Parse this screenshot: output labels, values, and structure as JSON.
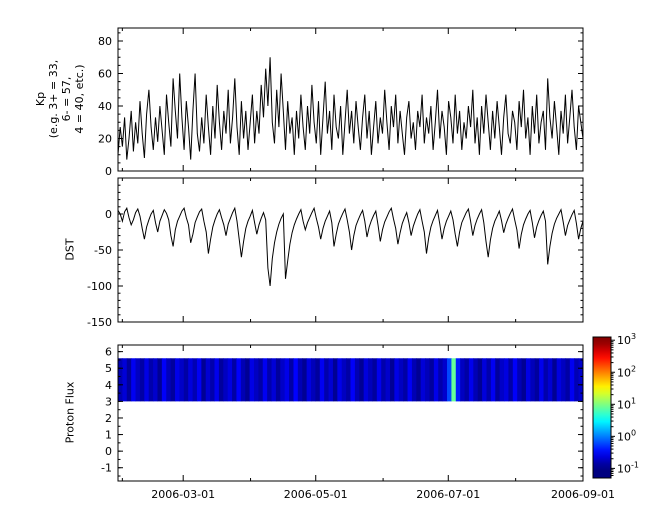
{
  "figure": {
    "background": "#ffffff",
    "axis_color": "#000000",
    "x_axis": {
      "unit": "days since 2006-02-01",
      "range": [
        -2,
        212
      ],
      "major_ticks": [
        {
          "day": 28,
          "label": "2006-03-01"
        },
        {
          "day": 89,
          "label": "2006-05-01"
        },
        {
          "day": 150,
          "label": "2006-07-01"
        },
        {
          "day": 212,
          "label": "2006-09-01"
        }
      ],
      "minor_tick_days": [
        0,
        59,
        120,
        181
      ]
    }
  },
  "chart_data": [
    {
      "type": "line",
      "series_name": "Kp",
      "ylabel_lines": [
        "Kp",
        "(e.g. 3+ = 33,",
        "6- = 57,",
        "4 = 40, etc.)"
      ],
      "line_color": "#000000",
      "ylim": [
        0,
        88
      ],
      "yticks": [
        0,
        20,
        40,
        60,
        80
      ],
      "y_minor_step": 5,
      "values": [
        10,
        27,
        15,
        33,
        7,
        20,
        37,
        12,
        30,
        17,
        43,
        23,
        8,
        35,
        50,
        27,
        13,
        33,
        18,
        40,
        25,
        10,
        47,
        30,
        15,
        57,
        37,
        20,
        60,
        33,
        13,
        43,
        27,
        7,
        37,
        60,
        23,
        12,
        33,
        17,
        47,
        27,
        10,
        40,
        20,
        53,
        30,
        13,
        37,
        23,
        50,
        17,
        33,
        57,
        27,
        10,
        43,
        20,
        37,
        13,
        30,
        47,
        17,
        37,
        23,
        53,
        33,
        63,
        40,
        70,
        30,
        17,
        50,
        27,
        60,
        37,
        13,
        43,
        23,
        33,
        10,
        37,
        20,
        47,
        27,
        13,
        40,
        23,
        53,
        30,
        17,
        43,
        10,
        33,
        55,
        23,
        37,
        13,
        47,
        27,
        20,
        40,
        10,
        30,
        50,
        23,
        37,
        17,
        43,
        27,
        13,
        33,
        47,
        20,
        37,
        10,
        27,
        43,
        17,
        33,
        23,
        50,
        30,
        13,
        40,
        27,
        47,
        17,
        37,
        23,
        10,
        33,
        43,
        20,
        30,
        13,
        37,
        27,
        47,
        17,
        33,
        23,
        40,
        13,
        30,
        50,
        20,
        37,
        27,
        10,
        43,
        33,
        17,
        47,
        23,
        37,
        13,
        30,
        20,
        40,
        27,
        50,
        17,
        33,
        10,
        40,
        23,
        47,
        30,
        13,
        37,
        20,
        43,
        27,
        10,
        33,
        47,
        23,
        17,
        37,
        30,
        13,
        43,
        27,
        50,
        20,
        33,
        10,
        40,
        23,
        47,
        17,
        30,
        37,
        13,
        57,
        33,
        20,
        43,
        27,
        10,
        37,
        23,
        47,
        17,
        33,
        50,
        27,
        13,
        40,
        30,
        20
      ]
    },
    {
      "type": "line",
      "series_name": "DST",
      "ylabel": "DST",
      "line_color": "#000000",
      "ylim": [
        -150,
        50
      ],
      "yticks": [
        0,
        -50,
        -100,
        -150
      ],
      "y_minor_step": 10,
      "values": [
        5,
        0,
        -10,
        3,
        8,
        -5,
        -15,
        -8,
        2,
        7,
        -3,
        -20,
        -35,
        -18,
        -8,
        0,
        5,
        -12,
        -25,
        -10,
        -2,
        6,
        1,
        -8,
        -30,
        -45,
        -22,
        -10,
        -3,
        4,
        8,
        -5,
        -15,
        -40,
        -28,
        -12,
        -4,
        3,
        7,
        -10,
        -25,
        -55,
        -35,
        -18,
        -8,
        0,
        6,
        -5,
        -15,
        -30,
        -14,
        -6,
        2,
        8,
        -10,
        -35,
        -60,
        -38,
        -20,
        -10,
        -3,
        5,
        -12,
        -28,
        -15,
        -6,
        2,
        -8,
        -75,
        -100,
        -62,
        -40,
        -25,
        -14,
        -6,
        0,
        -90,
        -65,
        -42,
        -26,
        -15,
        -7,
        0,
        6,
        -10,
        -22,
        -12,
        -5,
        2,
        8,
        -6,
        -18,
        -35,
        -20,
        -10,
        -3,
        4,
        -12,
        -45,
        -28,
        -14,
        -6,
        1,
        7,
        -8,
        -25,
        -50,
        -30,
        -16,
        -8,
        -1,
        5,
        -10,
        -32,
        -18,
        -9,
        -2,
        4,
        -15,
        -38,
        -22,
        -11,
        -4,
        3,
        8,
        -7,
        -20,
        -42,
        -26,
        -13,
        -5,
        2,
        -12,
        -30,
        -17,
        -8,
        0,
        6,
        -10,
        -25,
        -55,
        -33,
        -18,
        -9,
        -2,
        5,
        -14,
        -35,
        -20,
        -10,
        -3,
        4,
        -8,
        -28,
        -45,
        -25,
        -12,
        -5,
        2,
        7,
        -10,
        -30,
        -16,
        -7,
        0,
        6,
        -12,
        -38,
        -60,
        -36,
        -20,
        -10,
        -3,
        4,
        -9,
        -26,
        -14,
        -6,
        1,
        7,
        -8,
        -22,
        -48,
        -28,
        -15,
        -7,
        0,
        5,
        -12,
        -33,
        -18,
        -9,
        -2,
        4,
        -10,
        -70,
        -45,
        -27,
        -14,
        -6,
        0,
        6,
        -11,
        -30,
        -16,
        -8,
        -1,
        5,
        -13,
        -35,
        -20,
        -10
      ]
    },
    {
      "type": "heatmap",
      "series_name": "Proton Flux",
      "ylabel": "Proton Flux",
      "ylim": [
        -1.8,
        6.4
      ],
      "yticks": [
        6,
        5,
        4,
        3,
        2,
        1,
        0,
        -1
      ],
      "y_minor_step": 0.5,
      "band_y": [
        3.0,
        5.6
      ],
      "colormap": "jet",
      "value_scale": "log10",
      "flux_columns": [
        0.16,
        0.22,
        0.13,
        0.28,
        0.18,
        0.14,
        0.25,
        0.15,
        0.2,
        0.12,
        0.3,
        0.17,
        0.13,
        0.26,
        0.19,
        0.14,
        0.23,
        0.16,
        0.29,
        0.12,
        0.21,
        0.15,
        0.27,
        0.13,
        0.18,
        0.24,
        0.14,
        0.31,
        0.16,
        0.12,
        0.25,
        0.18,
        0.14,
        0.28,
        0.15,
        0.22,
        0.13,
        0.19,
        0.26,
        0.14,
        0.32,
        0.16,
        0.12,
        0.24,
        0.17,
        0.13,
        0.28,
        0.15,
        0.21,
        0.12,
        0.26,
        0.18,
        0.14,
        0.3,
        0.16,
        0.12,
        0.23,
        0.17,
        0.13,
        0.27,
        0.15,
        0.2,
        0.12,
        0.25,
        0.18,
        0.14,
        0.29,
        0.16,
        0.12,
        0.22,
        0.17,
        0.13,
        0.26,
        0.15,
        0.2,
        0.6,
        8.0,
        0.4,
        0.18,
        0.14,
        0.27,
        0.16,
        0.12,
        0.23,
        0.15,
        0.28,
        0.13,
        0.19,
        0.24,
        0.14,
        0.3,
        0.16,
        0.12,
        0.25,
        0.17,
        0.13,
        0.27,
        0.15,
        0.21,
        0.12,
        0.24,
        0.18,
        0.14,
        0.28,
        0.16,
        0.2
      ],
      "colorbar": {
        "log_range": [
          -1.3,
          3.1
        ],
        "tick_exponents": [
          3,
          2,
          1,
          0,
          -1
        ],
        "tick_labels": [
          "10^3",
          "10^2",
          "10^1",
          "10^0",
          "10^-1"
        ]
      }
    }
  ]
}
